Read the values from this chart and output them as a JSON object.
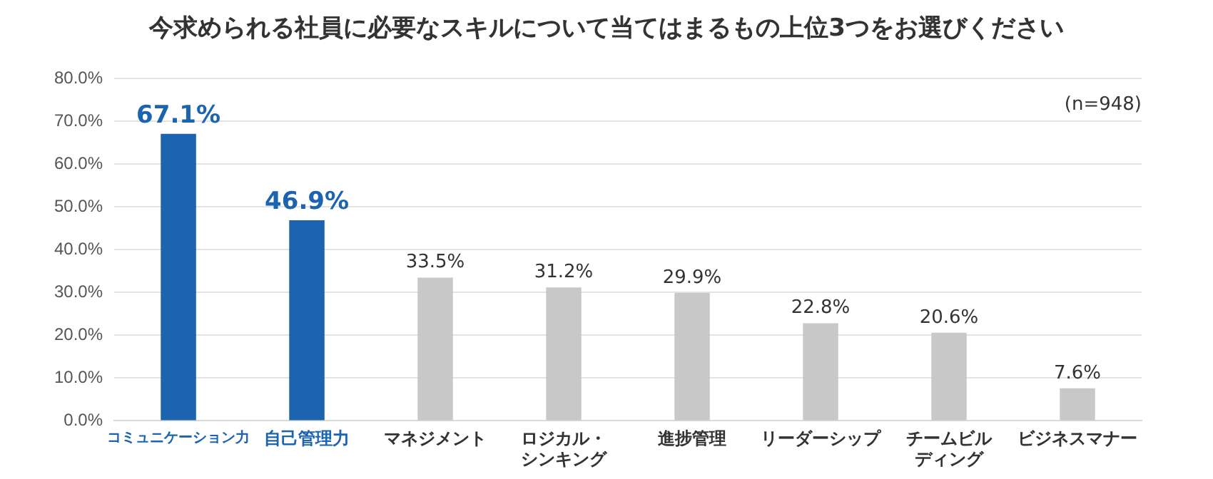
{
  "chart_data": {
    "type": "bar",
    "title": "今求められる社員に必要なスキルについて当てはまるもの上位3つをお選びください",
    "categories": [
      "コミュニケーション力",
      "自己管理力",
      "マネジメント",
      "ロジカル・シンキング",
      "進捗管理",
      "リーダーシップ",
      "チームビルディング",
      "ビジネスマナー"
    ],
    "values": [
      67.1,
      46.9,
      33.5,
      31.2,
      29.9,
      22.8,
      20.6,
      7.6
    ],
    "value_labels": [
      "67.1%",
      "46.9%",
      "33.5%",
      "31.2%",
      "29.9%",
      "22.8%",
      "20.6%",
      "7.6%"
    ],
    "colors": [
      "#1c63b0",
      "#1c63b0",
      "#c8c8c8",
      "#c8c8c8",
      "#c8c8c8",
      "#c8c8c8",
      "#c8c8c8",
      "#c8c8c8"
    ],
    "ylim": [
      0,
      80
    ],
    "yticks": [
      {
        "value": 0,
        "label": "0.0%"
      },
      {
        "value": 10,
        "label": "10.0%"
      },
      {
        "value": 20,
        "label": "20.0%"
      },
      {
        "value": 30,
        "label": "30.0%"
      },
      {
        "value": 40,
        "label": "40.0%"
      },
      {
        "value": 50,
        "label": "50.0%"
      },
      {
        "value": 60,
        "label": "60.0%"
      },
      {
        "value": 70,
        "label": "70.0%"
      },
      {
        "value": 80,
        "label": "80.0%"
      }
    ],
    "grid": "y",
    "annotations": [
      "(n=948)"
    ]
  }
}
